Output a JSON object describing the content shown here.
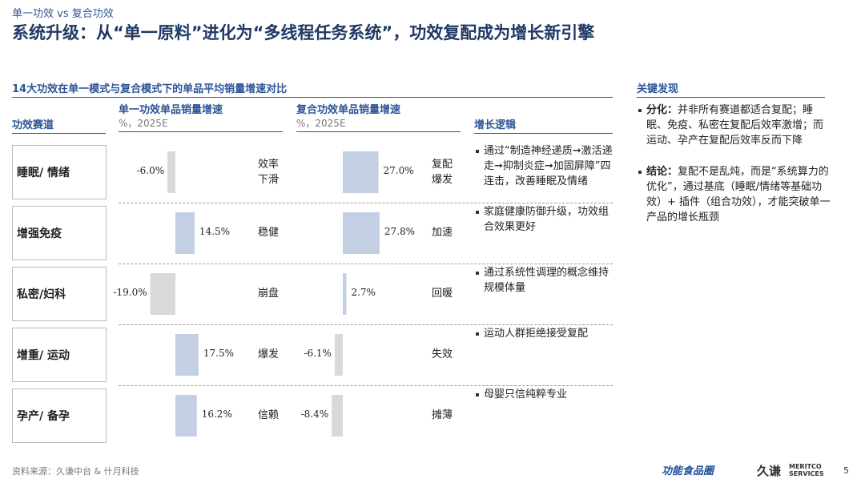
{
  "header": {
    "kicker": "单一功效 vs 复合功效",
    "title": "系统升级：从“单一原料”进化为“多线程任务系统”，功效复配成为增长新引擎"
  },
  "table": {
    "title": "14大功效在单一模式与复合模式下的单品平均销量增速对比",
    "columns": {
      "track": "功效赛道",
      "single": "单一功效单品销量增速",
      "single_unit": "%，2025E",
      "combo": "复合功效单品销量增速",
      "combo_unit": "%，2025E",
      "logic": "增长逻辑"
    },
    "rows": [
      {
        "track": "睡眠/ 情绪",
        "single": -6.0,
        "single_label": "-6.0%",
        "single_tag": "效率下滑",
        "combo": 27.0,
        "combo_label": "27.0%",
        "combo_tag": "复配爆发",
        "logic": "通过“制造神经递质➞激活递走➞抑制炎症➞加固屏障”四连击，改善睡眠及情绪"
      },
      {
        "track": "增强免疫",
        "single": 14.5,
        "single_label": "14.5%",
        "single_tag": "稳健",
        "combo": 27.8,
        "combo_label": "27.8%",
        "combo_tag": "加速",
        "logic": "家庭健康防御升级，功效组合效果更好"
      },
      {
        "track": "私密/妇科",
        "single": -19.0,
        "single_label": "-19.0%",
        "single_tag": "崩盘",
        "combo": 2.7,
        "combo_label": "2.7%",
        "combo_tag": "回暖",
        "logic": "通过系统性调理的概念维持规模体量"
      },
      {
        "track": "增重/ 运动",
        "single": 17.5,
        "single_label": "17.5%",
        "single_tag": "爆发",
        "combo": -6.1,
        "combo_label": "-6.1%",
        "combo_tag": "失效",
        "logic": "运动人群拒绝接受复配"
      },
      {
        "track": "孕产/ 备孕",
        "single": 16.2,
        "single_label": "16.2%",
        "single_tag": "信赖",
        "combo": -8.4,
        "combo_label": "-8.4%",
        "combo_tag": "摊薄",
        "logic": "母婴只信纯粹专业"
      }
    ]
  },
  "findings": {
    "title": "关键发现",
    "items": [
      {
        "lead": "分化：",
        "text": "并非所有赛道都适合复配；睡眠、免疫、私密在复配后效率激增；而运动、孕产在复配后效率反而下降"
      },
      {
        "lead": "结论：",
        "text": "复配不是乱炖，而是“系统算力的优化”，通过基底（睡眠/情绪等基础功效）+ 插件（组合功效），才能突破单一产品的增长瓶颈"
      }
    ]
  },
  "footer": {
    "source": "资料来源：久谦中台 & 什月科技",
    "logo1": "功能食品圈",
    "logo2": "久谦",
    "logo3": "MERITCO SERVICES",
    "page": "5"
  }
}
